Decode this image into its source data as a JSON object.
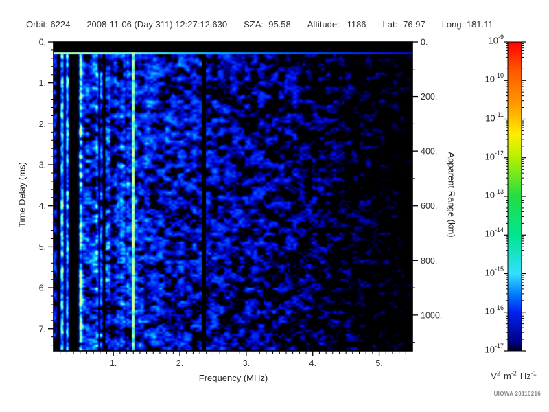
{
  "header": {
    "orbit": "Orbit: 6224",
    "datetime": "2008-11-06 (Day 311) 12:27:12.630",
    "sza": "SZA:  95.58",
    "altitude": "Altitude:   1186",
    "lat": "Lat: -76.97",
    "long": "Long: 181.11"
  },
  "watermark": "UIOWA 20110216",
  "chart_data": {
    "type": "heatmap",
    "description": "Radar sounder ionogram: spectral density vs frequency and time delay",
    "xlabel": "Frequency (MHz)",
    "ylabel_left": "Time Delay (ms)",
    "ylabel_right": "Apparent Range (km)",
    "x_range_mhz": [
      0.1,
      5.5
    ],
    "y_range_ms": [
      0,
      7.54
    ],
    "right_axis_range_km": [
      0,
      1131
    ],
    "km_per_ms": 150,
    "x_ticks": {
      "values": [
        1,
        2,
        3,
        4,
        5
      ],
      "labels": [
        "1.",
        "2.",
        "3.",
        "4.",
        "5."
      ],
      "minor_step": 0.1
    },
    "y_ticks": {
      "values": [
        0,
        1,
        2,
        3,
        4,
        5,
        6,
        7
      ],
      "labels": [
        "0.",
        "1.",
        "2.",
        "3.",
        "4.",
        "5.",
        "6.",
        "7."
      ],
      "minor_step": 0.2
    },
    "right_ticks": {
      "values": [
        0,
        200,
        400,
        600,
        800,
        1000
      ],
      "labels": [
        "0.",
        "200.",
        "400.",
        "600.",
        "800.",
        "1000."
      ],
      "minor_step": 100
    },
    "colorbar": {
      "scale": "log",
      "range_exponents": [
        -9,
        -17
      ],
      "tick_exponents": [
        "-9",
        "-10",
        "-11",
        "-12",
        "-13",
        "-14",
        "-15",
        "-16",
        "-17"
      ],
      "unit_parts": [
        {
          "base": "V",
          "exp": "2"
        },
        {
          "base": "m",
          "exp": "-2"
        },
        {
          "base": "Hz",
          "exp": "-1"
        }
      ],
      "gradient": [
        [
          "#ff0000",
          0
        ],
        [
          "#ff5500",
          0.09
        ],
        [
          "#ff9900",
          0.2
        ],
        [
          "#ffee00",
          0.3
        ],
        [
          "#bbf000",
          0.37
        ],
        [
          "#22dd44",
          0.5
        ],
        [
          "#00e690",
          0.625
        ],
        [
          "#33e0ff",
          0.75
        ],
        [
          "#0077ff",
          0.82
        ],
        [
          "#0022ee",
          0.875
        ],
        [
          "#000088",
          0.97
        ],
        [
          "#000022",
          1
        ]
      ]
    },
    "colormap": [
      [
        0,
        [
          0,
          0,
          0
        ]
      ],
      [
        0.08,
        [
          0,
          0,
          90
        ]
      ],
      [
        0.22,
        [
          0,
          10,
          225
        ]
      ],
      [
        0.45,
        [
          0,
          85,
          255
        ]
      ],
      [
        0.62,
        [
          0,
          185,
          255
        ]
      ],
      [
        0.8,
        [
          110,
          255,
          220
        ]
      ],
      [
        1,
        [
          205,
          255,
          160
        ]
      ]
    ],
    "noise": {
      "seed": 20110216,
      "cell": 8,
      "cell2": 4,
      "octave_mix": 0.62,
      "threshold": 0.24
    },
    "intensity_profile": [
      [
        0.1,
        0.95
      ],
      [
        0.5,
        0.92
      ],
      [
        1.2,
        0.85
      ],
      [
        2.0,
        0.76
      ],
      [
        2.45,
        0.7
      ],
      [
        3.0,
        0.66
      ],
      [
        3.6,
        0.58
      ],
      [
        4.2,
        0.5
      ],
      [
        4.8,
        0.42
      ],
      [
        5.2,
        0.37
      ],
      [
        5.5,
        0.33
      ]
    ],
    "stripes": {
      "f_max": 1.6,
      "strength": 0.9,
      "cell": 3,
      "dark_cut": 0.27
    },
    "features": {
      "top_black_band_ms": [
        0,
        0.235
      ],
      "surface_echo_line_ms": [
        0.24,
        0.3
      ],
      "bright_vlines": [
        {
          "f": 1.29,
          "width_mhz": 0.045,
          "value": 0.93
        }
      ],
      "bright_bands": [
        {
          "f0": 0.2,
          "f1": 0.31,
          "boost": 0.25
        },
        {
          "f0": 0.46,
          "f1": 0.53,
          "boost": 0.15
        }
      ],
      "dark_bands": [
        {
          "f0": 0.33,
          "f1": 0.455,
          "mult": 0.3
        }
      ],
      "black_gaps": [
        {
          "f0": 2.32,
          "f1": 2.39
        }
      ]
    }
  }
}
